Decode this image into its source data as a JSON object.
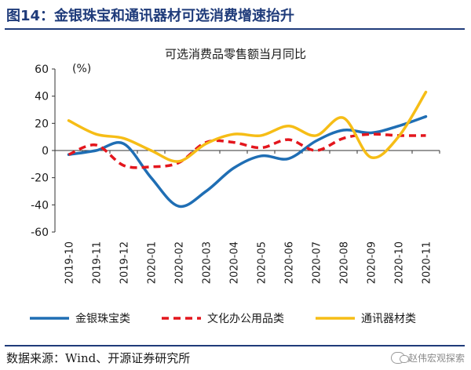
{
  "figure_title": "图14：金银珠宝和通讯器材可选消费增速抬升",
  "source_text": "数据来源：Wind、开源证券研究所",
  "watermark": {
    "text": "赵伟宏观探索"
  },
  "chart_data": {
    "type": "line",
    "title": "可选消费品零售额当月同比",
    "ylabel": "(%)",
    "ylim": [
      -60,
      60
    ],
    "yticks": [
      60,
      40,
      20,
      0,
      -20,
      -40,
      -60
    ],
    "categories": [
      "2019-10",
      "2019-11",
      "2019-12",
      "2020-01",
      "2020-02",
      "2020-03",
      "2020-04",
      "2020-05",
      "2020-06",
      "2020-07",
      "2020-08",
      "2020-09",
      "2020-10",
      "2020-11"
    ],
    "series": [
      {
        "name": "金银珠宝类",
        "color": "#1f6eb4",
        "style": "solid",
        "values": [
          -3,
          0,
          5,
          -20,
          -41,
          -30,
          -13,
          -4,
          -6,
          7,
          15,
          13,
          18,
          25
        ]
      },
      {
        "name": "文化办公用品类",
        "color": "#e3161d",
        "style": "dashed",
        "values": [
          -3,
          4,
          -11,
          -12,
          -9,
          6,
          6,
          2,
          8,
          0,
          9,
          12,
          11,
          11
        ]
      },
      {
        "name": "通讯器材类",
        "color": "#f6bd16",
        "style": "solid",
        "values": [
          22,
          12,
          9,
          0,
          -8,
          5,
          12,
          11,
          18,
          11,
          24,
          -5,
          10,
          43
        ]
      }
    ],
    "grid": false,
    "legend_position": "bottom"
  }
}
